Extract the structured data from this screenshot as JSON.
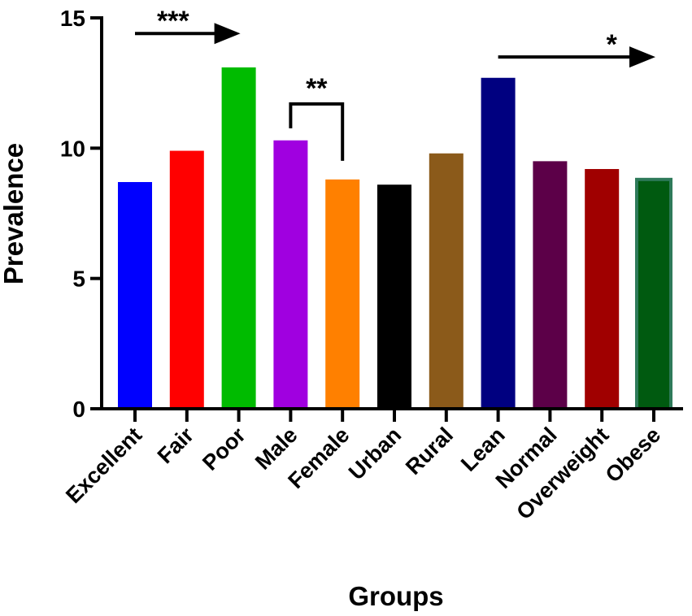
{
  "chart_data": {
    "type": "bar",
    "categories": [
      "Excellent",
      "Fair",
      "Poor",
      "Male",
      "Female",
      "Urban",
      "Rural",
      "Lean",
      "Normal",
      "Overweight",
      "Obese"
    ],
    "values": [
      8.7,
      9.9,
      13.1,
      10.3,
      8.8,
      8.6,
      9.8,
      12.7,
      9.5,
      9.2,
      8.8
    ],
    "colors": [
      "#0000ff",
      "#ff0000",
      "#00bb00",
      "#a000e0",
      "#ff8000",
      "#000000",
      "#8b5a1a",
      "#000080",
      "#5c0048",
      "#a00000",
      "#005a10"
    ],
    "xlabel": "Groups",
    "ylabel": "Prevalence",
    "ylim": [
      0,
      15
    ],
    "yticks": [
      0,
      5,
      10,
      15
    ],
    "ytick_labels": [
      "0",
      "5",
      "10",
      "15"
    ],
    "grid": false,
    "annotations": [
      {
        "label": "***",
        "type": "arrow",
        "from": "Excellent",
        "to": "Poor",
        "y": 14.4
      },
      {
        "label": "**",
        "type": "bracket",
        "from": "Male",
        "to": "Female",
        "y": 11.7
      },
      {
        "label": "*",
        "type": "arrow",
        "from": "Lean",
        "to": "Obese",
        "y": 13.5
      }
    ]
  }
}
